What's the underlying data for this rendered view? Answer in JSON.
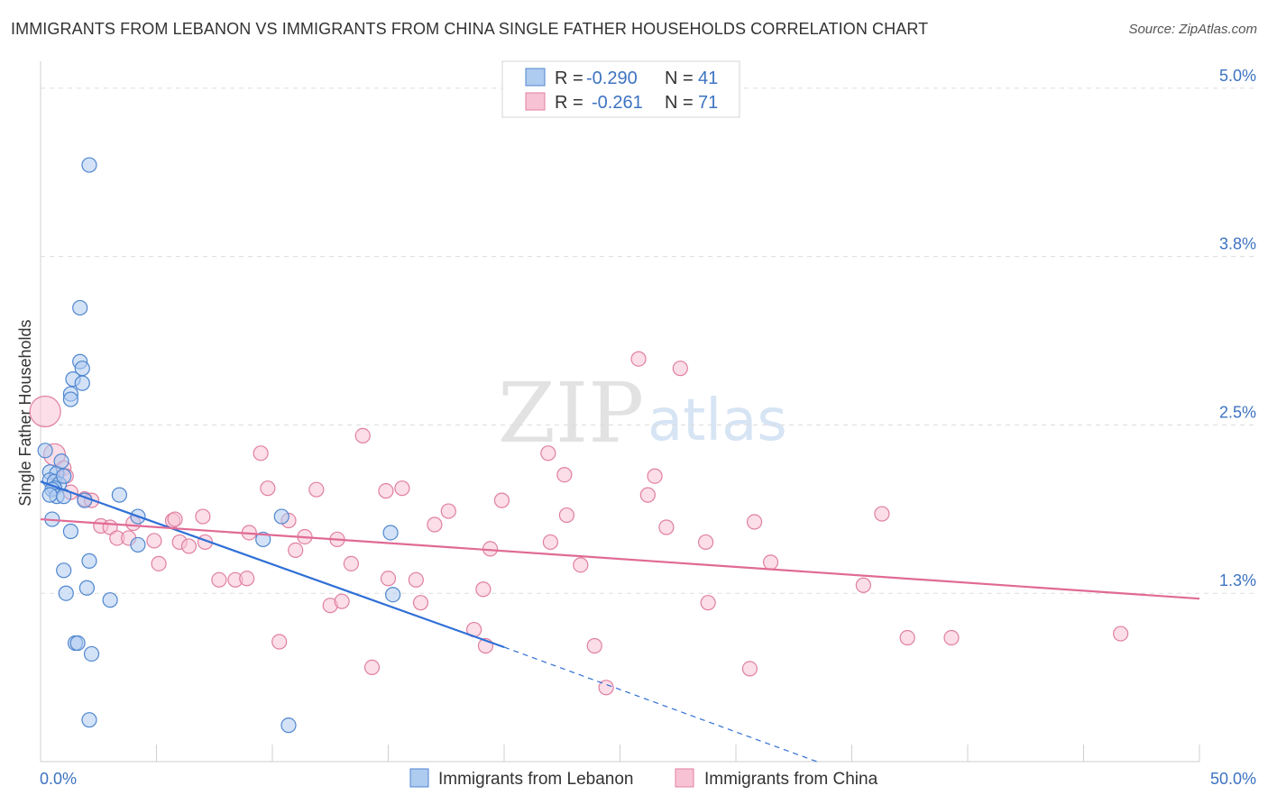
{
  "title": "IMMIGRANTS FROM LEBANON VS IMMIGRANTS FROM CHINA SINGLE FATHER HOUSEHOLDS CORRELATION CHART",
  "source": "Source: ZipAtlas.com",
  "watermark": {
    "zip": "ZIP",
    "atlas": "atlas"
  },
  "colors": {
    "lebanon_fill": "#aecbf0",
    "lebanon_stroke": "#4f86cf",
    "lebanon_line": "#2f6fd6",
    "china_fill": "#f7c3d4",
    "china_stroke": "#e07fa0",
    "china_line": "#e06a95",
    "grid": "#dddddd",
    "tick_label": "#3d73c1"
  },
  "legend": {
    "rows": [
      {
        "r_label": "R =",
        "r_value": "-0.290",
        "n_label": "N =",
        "n_value": "41"
      },
      {
        "r_label": "R =",
        "r_value": "-0.261",
        "n_label": "N =",
        "n_value": "71"
      }
    ]
  },
  "chart_data": {
    "type": "scatter",
    "title": "IMMIGRANTS FROM LEBANON VS IMMIGRANTS FROM CHINA SINGLE FATHER HOUSEHOLDS CORRELATION CHART",
    "xlabel": "",
    "ylabel": "Single Father Households",
    "xlim": [
      0,
      50
    ],
    "ylim": [
      0,
      5.2
    ],
    "x_tick_labels": [
      "0.0%",
      "50.0%"
    ],
    "y_ticks": [
      {
        "value": 1.25,
        "label": "1.3%"
      },
      {
        "value": 2.5,
        "label": "2.5%"
      },
      {
        "value": 3.75,
        "label": "3.8%"
      },
      {
        "value": 5.0,
        "label": "5.0%"
      }
    ],
    "grid": true,
    "series": [
      {
        "name": "Immigrants from Lebanon",
        "r": -0.29,
        "n": 41,
        "trend": {
          "x0": 0,
          "y0": 2.08,
          "x1": 20,
          "y1": 0.85,
          "dash_to_x": 33.5,
          "dash_to_y": 0.0
        },
        "points": [
          [
            2.1,
            4.43
          ],
          [
            1.7,
            3.37
          ],
          [
            1.7,
            2.97
          ],
          [
            1.8,
            2.92
          ],
          [
            1.4,
            2.84
          ],
          [
            1.8,
            2.81
          ],
          [
            1.3,
            2.73
          ],
          [
            1.3,
            2.69
          ],
          [
            0.2,
            2.31
          ],
          [
            0.4,
            2.15
          ],
          [
            0.7,
            2.14
          ],
          [
            0.4,
            2.09
          ],
          [
            0.6,
            2.08
          ],
          [
            0.8,
            2.06
          ],
          [
            0.6,
            2.03
          ],
          [
            0.5,
            2.02
          ],
          [
            0.7,
            1.97
          ],
          [
            0.4,
            1.98
          ],
          [
            1.0,
            1.97
          ],
          [
            1.9,
            1.94
          ],
          [
            3.4,
            1.98
          ],
          [
            4.2,
            1.82
          ],
          [
            10.4,
            1.82
          ],
          [
            0.5,
            1.8
          ],
          [
            1.3,
            1.71
          ],
          [
            4.2,
            1.61
          ],
          [
            9.6,
            1.65
          ],
          [
            15.1,
            1.7
          ],
          [
            2.1,
            1.49
          ],
          [
            1.0,
            1.42
          ],
          [
            2.0,
            1.29
          ],
          [
            1.1,
            1.25
          ],
          [
            3.0,
            1.2
          ],
          [
            15.2,
            1.24
          ],
          [
            1.5,
            0.88
          ],
          [
            1.6,
            0.88
          ],
          [
            2.2,
            0.8
          ],
          [
            2.1,
            0.31
          ],
          [
            10.7,
            0.27
          ],
          [
            1.0,
            2.12
          ],
          [
            0.9,
            2.23
          ]
        ]
      },
      {
        "name": "Immigrants from China",
        "r": -0.261,
        "n": 71,
        "trend": {
          "x0": 0,
          "y0": 1.8,
          "x1": 50,
          "y1": 1.21
        },
        "points": [
          [
            0.2,
            2.6
          ],
          [
            0.6,
            2.28
          ],
          [
            1.0,
            2.18
          ],
          [
            1.1,
            2.12
          ],
          [
            1.3,
            2.0
          ],
          [
            1.9,
            1.95
          ],
          [
            2.2,
            1.94
          ],
          [
            25.8,
            2.99
          ],
          [
            27.6,
            2.92
          ],
          [
            13.9,
            2.42
          ],
          [
            9.5,
            2.29
          ],
          [
            21.9,
            2.29
          ],
          [
            22.6,
            2.13
          ],
          [
            26.5,
            2.12
          ],
          [
            9.8,
            2.03
          ],
          [
            11.9,
            2.02
          ],
          [
            14.9,
            2.01
          ],
          [
            15.6,
            2.03
          ],
          [
            26.2,
            1.98
          ],
          [
            19.9,
            1.94
          ],
          [
            17.6,
            1.86
          ],
          [
            22.7,
            1.83
          ],
          [
            36.3,
            1.84
          ],
          [
            7.0,
            1.82
          ],
          [
            5.7,
            1.79
          ],
          [
            10.7,
            1.79
          ],
          [
            17.0,
            1.76
          ],
          [
            30.8,
            1.78
          ],
          [
            4.0,
            1.77
          ],
          [
            2.6,
            1.75
          ],
          [
            3.0,
            1.74
          ],
          [
            27.0,
            1.74
          ],
          [
            9.0,
            1.7
          ],
          [
            11.4,
            1.67
          ],
          [
            12.8,
            1.65
          ],
          [
            3.3,
            1.66
          ],
          [
            3.8,
            1.66
          ],
          [
            4.9,
            1.64
          ],
          [
            6.0,
            1.63
          ],
          [
            7.1,
            1.63
          ],
          [
            22.0,
            1.63
          ],
          [
            28.7,
            1.63
          ],
          [
            6.4,
            1.6
          ],
          [
            11.0,
            1.57
          ],
          [
            19.4,
            1.58
          ],
          [
            5.1,
            1.47
          ],
          [
            13.4,
            1.47
          ],
          [
            23.3,
            1.46
          ],
          [
            31.5,
            1.48
          ],
          [
            7.7,
            1.35
          ],
          [
            8.4,
            1.35
          ],
          [
            8.9,
            1.36
          ],
          [
            15.0,
            1.36
          ],
          [
            16.2,
            1.35
          ],
          [
            35.5,
            1.31
          ],
          [
            19.1,
            1.28
          ],
          [
            16.4,
            1.18
          ],
          [
            12.5,
            1.16
          ],
          [
            13.0,
            1.19
          ],
          [
            28.8,
            1.18
          ],
          [
            18.7,
            0.98
          ],
          [
            10.3,
            0.89
          ],
          [
            37.4,
            0.92
          ],
          [
            39.3,
            0.92
          ],
          [
            46.6,
            0.95
          ],
          [
            23.9,
            0.86
          ],
          [
            19.2,
            0.86
          ],
          [
            14.3,
            0.7
          ],
          [
            30.6,
            0.69
          ],
          [
            24.4,
            0.55
          ],
          [
            5.8,
            1.8
          ]
        ]
      }
    ]
  },
  "bottom_legend": {
    "items": [
      "Immigrants from Lebanon",
      "Immigrants from China"
    ]
  }
}
